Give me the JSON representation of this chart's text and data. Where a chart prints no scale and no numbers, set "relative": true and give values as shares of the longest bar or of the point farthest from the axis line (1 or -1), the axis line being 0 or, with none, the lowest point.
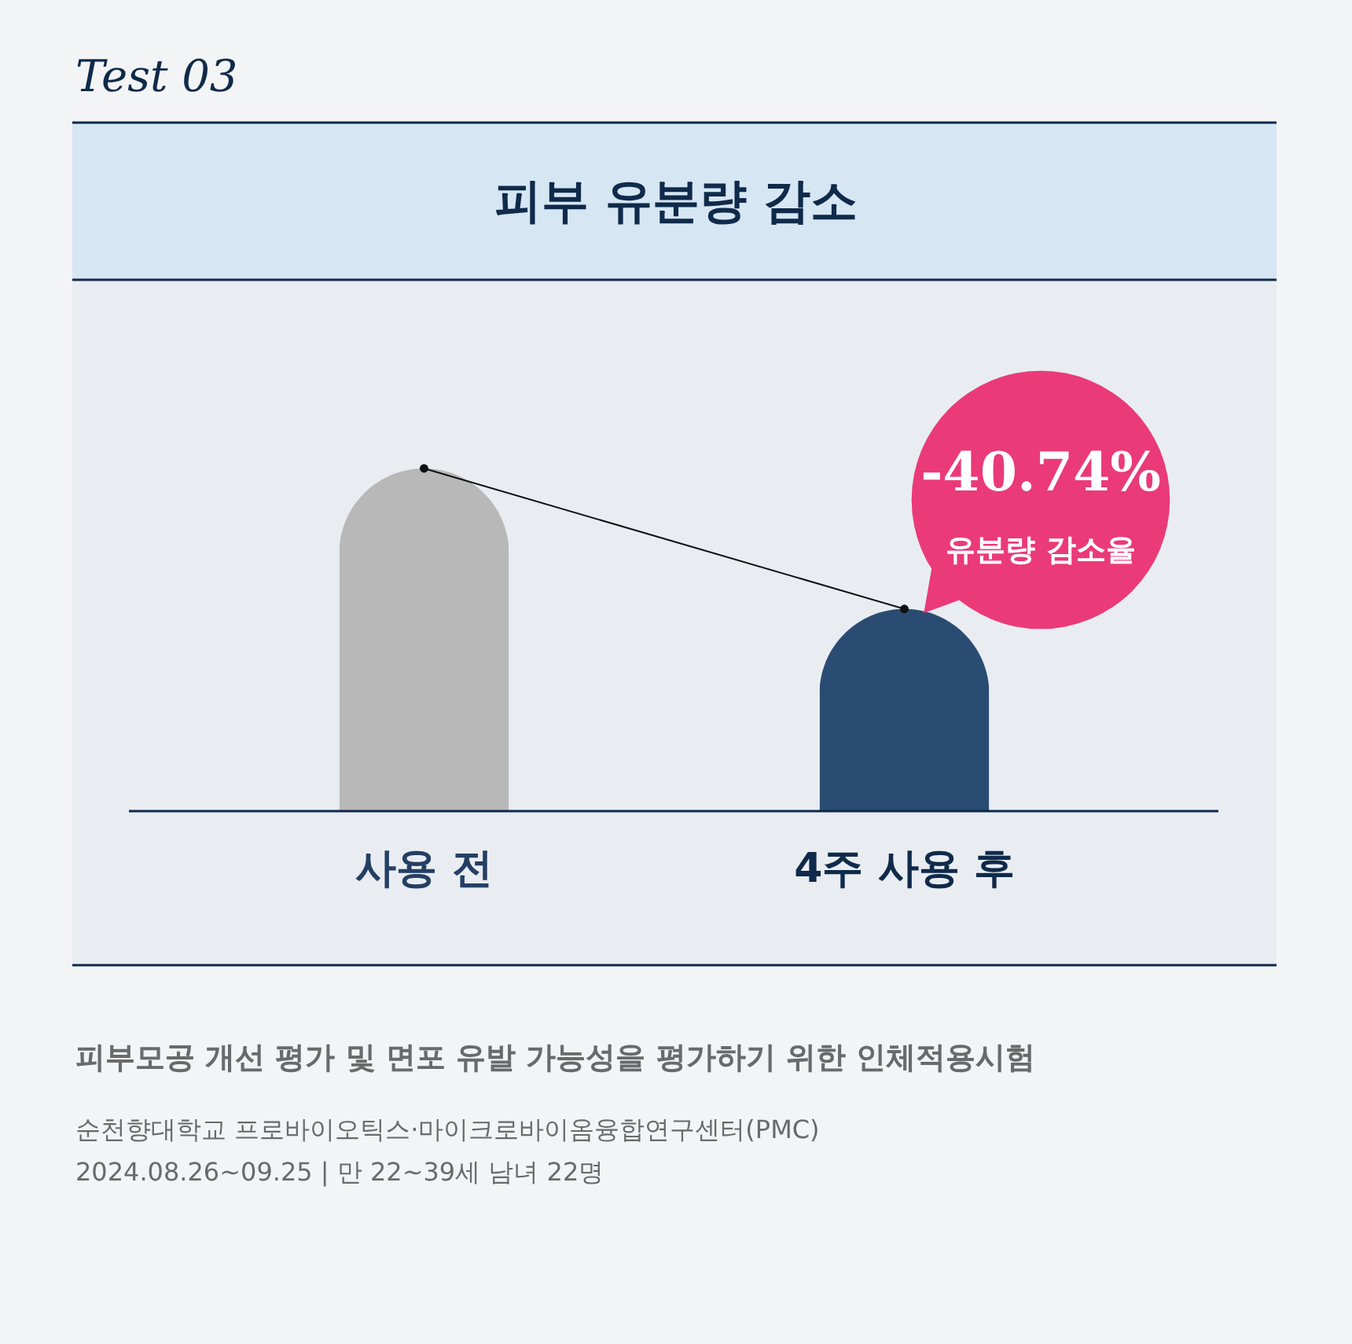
{
  "chart_data": {
    "type": "bar",
    "title": "피부 유분량 감소",
    "relative": true,
    "categories": [
      "사용 전",
      "4주 사용 후"
    ],
    "series": [
      {
        "type": "bar",
        "colors": [
          "#b8b8b8",
          "#2b4c72"
        ],
        "values": [
          1,
          0.59
        ]
      },
      {
        "type": "line",
        "color": "#111111",
        "marker": "circle",
        "values": [
          1,
          0.59
        ]
      }
    ],
    "annotations": [
      "Test 03",
      "-40.74%",
      "유분량 감소율",
      "피부모공 개선 평가 및 면포 유발 가능성을 평가하기 위한 인체적용시험",
      "순천향대학교 프로바이오틱스·마이크로바이옴융합연구센터(PMC)",
      "2024.08.26~09.25 | 만 22~39세 남녀 22명"
    ]
  }
}
